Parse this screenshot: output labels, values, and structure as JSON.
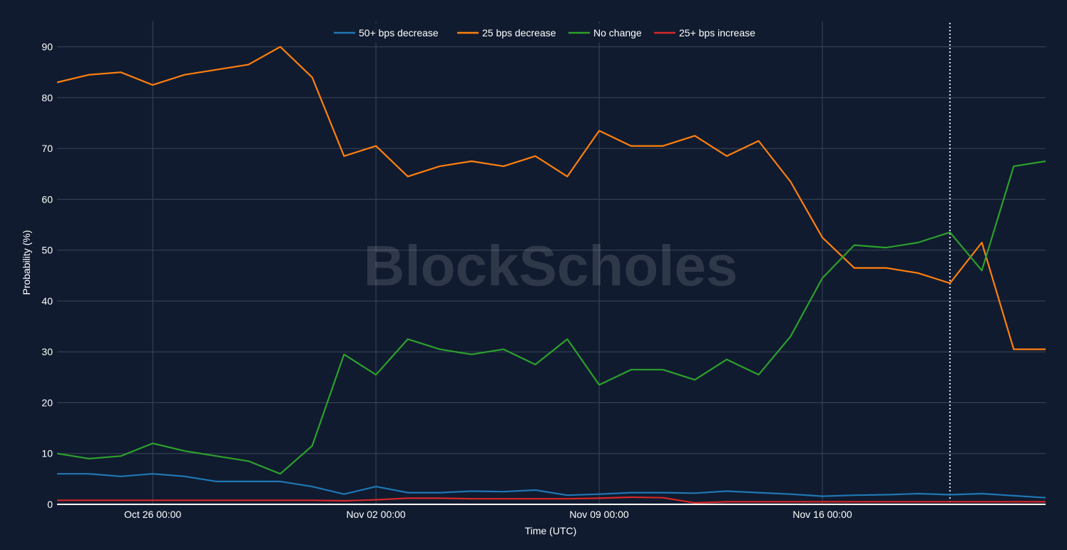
{
  "chart_data": {
    "type": "line",
    "xlabel": "Time (UTC)",
    "ylabel": "Probability (%)",
    "ylim": [
      0,
      95
    ],
    "yticks": [
      0,
      10,
      20,
      30,
      40,
      50,
      60,
      70,
      80,
      90
    ],
    "xlim": [
      "2024-10-23",
      "2024-11-23"
    ],
    "xticks": [
      {
        "date": "2024-10-26",
        "label": "Oct 26 00:00"
      },
      {
        "date": "2024-11-02",
        "label": "Nov 02 00:00"
      },
      {
        "date": "2024-11-09",
        "label": "Nov 09 00:00"
      },
      {
        "date": "2024-11-16",
        "label": "Nov 16 00:00"
      }
    ],
    "grid": true,
    "legend_position": "top-center",
    "watermark": "BlockScholes",
    "marker_line_date": "2024-11-20",
    "x": [
      "2024-10-23",
      "2024-10-24",
      "2024-10-25",
      "2024-10-26",
      "2024-10-27",
      "2024-10-28",
      "2024-10-29",
      "2024-10-30",
      "2024-10-31",
      "2024-11-01",
      "2024-11-02",
      "2024-11-03",
      "2024-11-04",
      "2024-11-05",
      "2024-11-06",
      "2024-11-07",
      "2024-11-08",
      "2024-11-09",
      "2024-11-10",
      "2024-11-11",
      "2024-11-12",
      "2024-11-13",
      "2024-11-14",
      "2024-11-15",
      "2024-11-16",
      "2024-11-17",
      "2024-11-18",
      "2024-11-19",
      "2024-11-20",
      "2024-11-21",
      "2024-11-22",
      "2024-11-23"
    ],
    "series": [
      {
        "name": "50+ bps decrease",
        "color": "#1f77b4",
        "values": [
          6,
          6,
          5.5,
          6,
          5.5,
          4.5,
          4.5,
          4.5,
          3.5,
          2,
          3.5,
          2.3,
          2.3,
          2.6,
          2.5,
          2.8,
          1.8,
          2,
          2.3,
          2.3,
          2.2,
          2.6,
          2.3,
          2,
          1.6,
          1.8,
          1.9,
          2.1,
          1.9,
          2.1,
          1.7,
          1.3
        ]
      },
      {
        "name": "25 bps decrease",
        "color": "#ff7f0e",
        "values": [
          83,
          84.5,
          85,
          82.5,
          84.5,
          85.5,
          86.5,
          90,
          84,
          68.5,
          70.5,
          64.5,
          66.5,
          67.5,
          66.5,
          68.5,
          64.5,
          73.5,
          70.5,
          70.5,
          72.5,
          68.5,
          71.5,
          63.5,
          52.5,
          46.5,
          46.5,
          45.5,
          43.5,
          51.5,
          30.5,
          30.5
        ]
      },
      {
        "name": "No change",
        "color": "#2ca02c",
        "values": [
          10,
          9,
          9.5,
          12,
          10.5,
          9.5,
          8.5,
          6,
          11.5,
          29.5,
          25.5,
          32.5,
          30.5,
          29.5,
          30.5,
          27.5,
          32.5,
          23.5,
          26.5,
          26.5,
          24.5,
          28.5,
          25.5,
          33,
          44.5,
          51,
          50.5,
          51.5,
          53.5,
          46,
          66.5,
          67.5
        ]
      },
      {
        "name": "25+ bps increase",
        "color": "#d62728",
        "values": [
          0.8,
          0.8,
          0.8,
          0.8,
          0.8,
          0.8,
          0.8,
          0.8,
          0.8,
          0.7,
          0.9,
          1.2,
          1.2,
          1.1,
          1.1,
          1.1,
          1.1,
          1.2,
          1.4,
          1.3,
          0.3,
          0.5,
          0.5,
          0.5,
          0.5,
          0.5,
          0.5,
          0.5,
          0.5,
          0.5,
          0.5,
          0.5
        ]
      }
    ]
  }
}
